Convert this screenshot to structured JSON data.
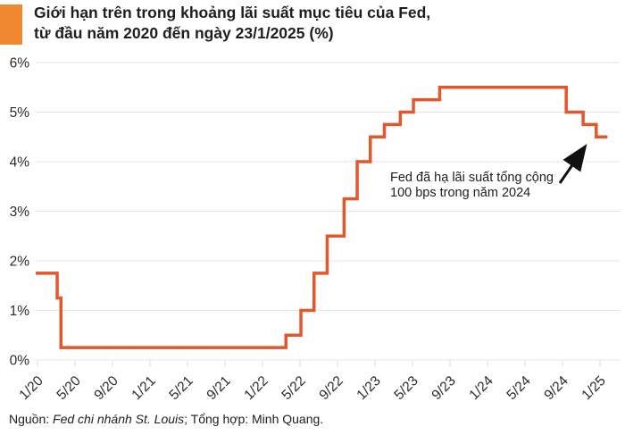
{
  "header": {
    "title_line1": "Giới hạn trên trong khoảng lãi suất mục tiêu của Fed,",
    "title_line2": "từ đầu năm 2020 đến ngày 23/1/2025 (%)",
    "accent_color": "#F0882F"
  },
  "footer": {
    "source_prefix": "Nguồn: ",
    "source_italic": "Fed chi nhánh St. Louis",
    "source_suffix": "; Tổng hợp: Minh Quang."
  },
  "chart_data": {
    "type": "line",
    "subtype": "step",
    "title": "Giới hạn trên trong khoảng lãi suất mục tiêu của Fed, từ đầu năm 2020 đến ngày 23/1/2025 (%)",
    "ylabel": "",
    "xlabel": "",
    "unit": "%",
    "ylim": [
      0,
      6
    ],
    "grid": true,
    "line_color": "#E2572B",
    "arrow_color": "#111111",
    "ytick_labels": [
      "0%",
      "1%",
      "2%",
      "3%",
      "4%",
      "5%",
      "6%"
    ],
    "xtick_labels": [
      "1/20",
      "5/20",
      "9/20",
      "1/21",
      "5/21",
      "9/21",
      "1/22",
      "5/22",
      "9/22",
      "1/23",
      "5/23",
      "9/23",
      "1/24",
      "5/24",
      "9/24",
      "1/25"
    ],
    "xtick_interval_months": 4,
    "steps": [
      {
        "date": "1/20",
        "m": 0,
        "value": 1.75
      },
      {
        "date": "3/20",
        "m": 2.1,
        "value": 1.25
      },
      {
        "date": "3/20",
        "m": 2.5,
        "value": 0.25
      },
      {
        "date": "3/22",
        "m": 26.5,
        "value": 0.5
      },
      {
        "date": "5/22",
        "m": 28.1,
        "value": 1.0
      },
      {
        "date": "6/22",
        "m": 29.5,
        "value": 1.75
      },
      {
        "date": "7/22",
        "m": 30.9,
        "value": 2.5
      },
      {
        "date": "9/22",
        "m": 32.7,
        "value": 3.25
      },
      {
        "date": "11/22",
        "m": 34.1,
        "value": 4.0
      },
      {
        "date": "12/22",
        "m": 35.5,
        "value": 4.5
      },
      {
        "date": "2/23",
        "m": 37.0,
        "value": 4.75
      },
      {
        "date": "3/23",
        "m": 38.7,
        "value": 5.0
      },
      {
        "date": "5/23",
        "m": 40.1,
        "value": 5.25
      },
      {
        "date": "7/23",
        "m": 42.9,
        "value": 5.5
      },
      {
        "date": "9/24",
        "m": 56.4,
        "value": 5.0
      },
      {
        "date": "11/24",
        "m": 58.2,
        "value": 4.75
      },
      {
        "date": "12/24",
        "m": 59.6,
        "value": 4.5
      }
    ],
    "end_m": 60.8,
    "annotation": {
      "text_line1": "Fed đã hạ lãi suất tổng cộng",
      "text_line2": "100 bps trong năm 2024"
    }
  }
}
